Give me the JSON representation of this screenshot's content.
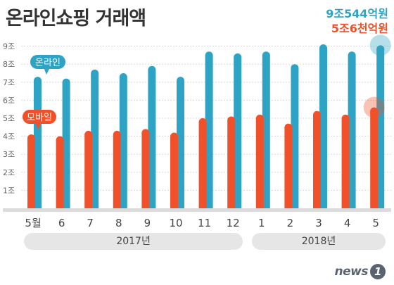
{
  "chart_data": {
    "type": "bar",
    "title": "온라인쇼핑 거래액",
    "categories": [
      "5월",
      "6",
      "7",
      "8",
      "9",
      "10",
      "11",
      "12",
      "1",
      "2",
      "3",
      "4",
      "5"
    ],
    "year_groups": [
      {
        "label": "2017년",
        "start": 0,
        "end": 7
      },
      {
        "label": "2018년",
        "start": 8,
        "end": 12
      }
    ],
    "y_ticks": [
      "1조",
      "2조",
      "3조",
      "4조",
      "5조",
      "6조",
      "7조",
      "8조",
      "9조"
    ],
    "ylim": [
      0,
      9.5
    ],
    "grid": true,
    "series": [
      {
        "name": "온라인",
        "color": "#2fa3c4",
        "values": [
          7.3,
          7.2,
          7.7,
          7.5,
          7.9,
          7.3,
          8.7,
          8.6,
          8.7,
          8.0,
          9.1,
          8.7,
          9.05
        ]
      },
      {
        "name": "모바일",
        "color": "#f0512a",
        "values": [
          4.1,
          4.0,
          4.3,
          4.3,
          4.4,
          4.2,
          5.0,
          5.1,
          5.2,
          4.7,
          5.4,
          5.2,
          5.6
        ]
      }
    ],
    "annotations": {
      "online_total": "9조544억원",
      "mobile_total": "5조6천억원"
    }
  },
  "brand": {
    "name": "news",
    "mark": "1"
  }
}
